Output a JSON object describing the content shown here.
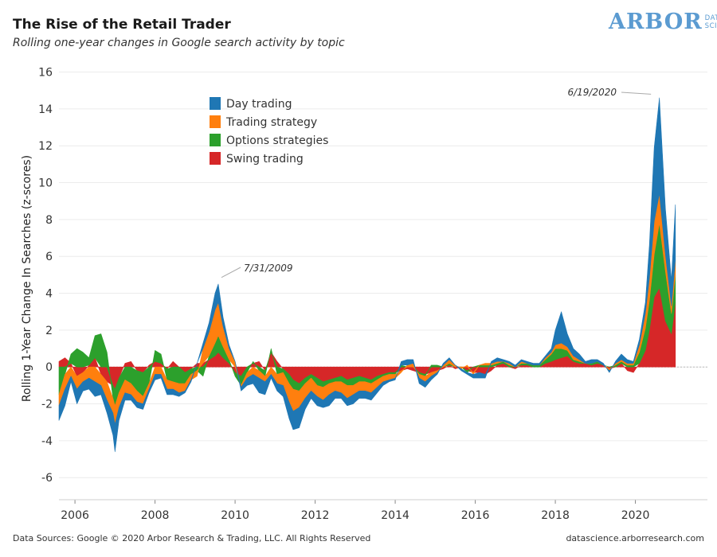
{
  "header": {
    "title": "The Rise of the Retail Trader",
    "subtitle": "Rolling one-year changes in Google search activity by topic"
  },
  "logo": {
    "main": "ARBOR",
    "sub_line1": "DATA",
    "sub_line2": "SCIENCE",
    "color": "#5b9bd1"
  },
  "footer": {
    "sources": "Data Sources: Google © 2020 Arbor Research & Trading, LLC. All Rights Reserved",
    "website": "datascience.arborresearch.com"
  },
  "chart_data": {
    "type": "area",
    "title": "The Rise of the Retail Trader",
    "subtitle": "Rolling one-year changes in Google search activity by topic",
    "xlabel": "",
    "ylabel": "Rolling 1-Year Change In Searches (z-scores)",
    "xlim": [
      2005.6,
      2021.8
    ],
    "ylim": [
      -7.2,
      16.8
    ],
    "x_ticks": [
      "2006",
      "2008",
      "2010",
      "2012",
      "2014",
      "2016",
      "2018",
      "2020"
    ],
    "y_ticks": [
      "16",
      "14",
      "12",
      "10",
      "8",
      "6",
      "4",
      "2",
      "0",
      "-2",
      "-4",
      "-6"
    ],
    "grid": true,
    "stacked": true,
    "legend_position": "top-left",
    "x": [
      2005.6,
      2005.75,
      2005.9,
      2006.05,
      2006.2,
      2006.35,
      2006.5,
      2006.65,
      2006.8,
      2006.95,
      2007.0,
      2007.1,
      2007.25,
      2007.4,
      2007.55,
      2007.7,
      2007.85,
      2008.0,
      2008.15,
      2008.3,
      2008.45,
      2008.6,
      2008.75,
      2008.9,
      2009.05,
      2009.2,
      2009.35,
      2009.5,
      2009.58,
      2009.7,
      2009.85,
      2010.0,
      2010.15,
      2010.3,
      2010.45,
      2010.6,
      2010.75,
      2010.9,
      2011.05,
      2011.2,
      2011.35,
      2011.45,
      2011.6,
      2011.75,
      2011.9,
      2012.05,
      2012.2,
      2012.35,
      2012.5,
      2012.65,
      2012.8,
      2012.95,
      2013.1,
      2013.25,
      2013.4,
      2013.55,
      2013.7,
      2013.85,
      2014.0,
      2014.15,
      2014.3,
      2014.45,
      2014.6,
      2014.75,
      2014.9,
      2015.05,
      2015.2,
      2015.35,
      2015.5,
      2015.65,
      2015.8,
      2015.95,
      2016.1,
      2016.25,
      2016.4,
      2016.55,
      2016.7,
      2016.85,
      2017.0,
      2017.15,
      2017.3,
      2017.45,
      2017.6,
      2017.75,
      2017.9,
      2018.0,
      2018.15,
      2018.3,
      2018.45,
      2018.6,
      2018.75,
      2018.9,
      2019.05,
      2019.2,
      2019.35,
      2019.5,
      2019.65,
      2019.8,
      2019.95,
      2020.1,
      2020.25,
      2020.35,
      2020.47,
      2020.6,
      2020.75,
      2020.9,
      2021.0
    ],
    "series": [
      {
        "name": "Swing trading",
        "color": "#d62728",
        "values": [
          0.3,
          0.5,
          0.2,
          -0.5,
          -0.3,
          0.1,
          0.5,
          -0.4,
          -0.8,
          -1.0,
          -1.2,
          -0.6,
          0.2,
          0.3,
          -0.2,
          -0.3,
          0.1,
          0.3,
          0.2,
          -0.1,
          0.3,
          0.0,
          -0.3,
          -0.1,
          0.2,
          0.2,
          0.4,
          0.6,
          0.8,
          0.5,
          0.2,
          -0.3,
          -0.5,
          0.0,
          0.2,
          0.3,
          -0.2,
          0.8,
          0.3,
          -0.1,
          -0.4,
          -0.7,
          -0.9,
          -0.6,
          -0.4,
          -0.6,
          -0.8,
          -0.7,
          -0.6,
          -0.5,
          -0.7,
          -0.6,
          -0.5,
          -0.6,
          -0.7,
          -0.5,
          -0.4,
          -0.3,
          -0.3,
          -0.2,
          -0.1,
          -0.2,
          -0.3,
          -0.4,
          -0.3,
          -0.2,
          -0.1,
          0.1,
          -0.1,
          0.0,
          -0.2,
          -0.3,
          -0.3,
          -0.4,
          -0.2,
          0.1,
          0.2,
          0.0,
          -0.1,
          0.1,
          0.1,
          0.0,
          0.0,
          0.2,
          0.3,
          0.4,
          0.5,
          0.6,
          0.3,
          0.2,
          0.2,
          0.1,
          0.2,
          0.1,
          -0.1,
          0.0,
          0.2,
          -0.2,
          -0.3,
          0.2,
          0.9,
          2.0,
          3.8,
          4.3,
          2.5,
          1.8,
          3.5
        ]
      },
      {
        "name": "Options strategies",
        "color": "#2ca02c",
        "values": [
          -1.5,
          -0.4,
          0.5,
          1.0,
          0.8,
          0.4,
          1.2,
          1.8,
          0.8,
          -0.7,
          -0.9,
          -0.8,
          -0.7,
          -0.9,
          -1.1,
          -1.3,
          -0.9,
          0.6,
          0.5,
          -0.6,
          -0.8,
          -0.9,
          -0.6,
          -0.3,
          -0.2,
          -0.5,
          0.2,
          0.7,
          0.9,
          0.6,
          0.2,
          -0.2,
          -0.5,
          -0.3,
          0.1,
          -0.2,
          -0.3,
          0.2,
          -0.4,
          -0.2,
          -0.5,
          -0.5,
          -0.4,
          -0.3,
          -0.2,
          -0.4,
          -0.3,
          -0.2,
          -0.2,
          -0.3,
          -0.3,
          -0.4,
          -0.3,
          -0.2,
          -0.2,
          -0.2,
          -0.1,
          -0.1,
          -0.1,
          0.1,
          0.0,
          0.0,
          -0.1,
          -0.1,
          0.1,
          0.1,
          0.0,
          0.1,
          0.0,
          0.0,
          -0.1,
          0.0,
          0.1,
          0.1,
          0.1,
          0.1,
          0.1,
          0.1,
          0.0,
          0.1,
          0.1,
          0.1,
          0.1,
          0.2,
          0.4,
          0.6,
          0.5,
          0.3,
          0.1,
          0.1,
          0.0,
          0.1,
          0.1,
          0.0,
          0.0,
          0.1,
          0.1,
          0.1,
          0.1,
          0.6,
          1.2,
          1.6,
          2.3,
          3.5,
          2.7,
          1.1,
          1.5
        ]
      },
      {
        "name": "Trading strategy",
        "color": "#ff7f0e",
        "values": [
          -0.6,
          -0.8,
          -0.5,
          -0.7,
          -0.5,
          -0.6,
          -0.8,
          -0.6,
          -1.0,
          -0.8,
          -1.0,
          -0.8,
          -0.7,
          -0.6,
          -0.6,
          -0.4,
          -0.3,
          -0.4,
          -0.4,
          -0.5,
          -0.4,
          -0.5,
          -0.4,
          -0.3,
          -0.3,
          0.8,
          1.3,
          1.8,
          1.8,
          1.1,
          0.6,
          0.3,
          -0.1,
          -0.3,
          -0.4,
          -0.4,
          -0.3,
          -0.4,
          -0.5,
          -0.7,
          -1.0,
          -1.2,
          -0.9,
          -0.8,
          -0.7,
          -0.6,
          -0.7,
          -0.6,
          -0.5,
          -0.6,
          -0.7,
          -0.5,
          -0.5,
          -0.5,
          -0.5,
          -0.4,
          -0.3,
          -0.3,
          -0.2,
          -0.1,
          0.1,
          0.2,
          -0.2,
          -0.3,
          -0.2,
          -0.1,
          0.1,
          0.2,
          0.1,
          -0.1,
          0.1,
          -0.1,
          0.0,
          0.1,
          0.1,
          0.1,
          0.0,
          0.1,
          0.0,
          0.1,
          0.0,
          0.0,
          0.0,
          0.1,
          0.1,
          0.2,
          0.3,
          0.2,
          0.2,
          0.1,
          0.0,
          0.0,
          0.0,
          0.0,
          -0.1,
          0.1,
          0.1,
          0.1,
          0.1,
          0.4,
          0.8,
          1.2,
          1.8,
          1.6,
          0.9,
          0.4,
          0.8
        ]
      },
      {
        "name": "Day trading",
        "color": "#1f77b4",
        "values": [
          -0.8,
          -0.9,
          -0.3,
          -0.8,
          -0.5,
          -0.6,
          -0.8,
          -0.5,
          -0.7,
          -1.2,
          -1.5,
          -0.7,
          -0.4,
          -0.3,
          -0.3,
          -0.3,
          -0.2,
          -0.3,
          -0.2,
          -0.3,
          -0.3,
          -0.2,
          -0.1,
          -0.1,
          0.0,
          0.3,
          0.5,
          0.9,
          1.0,
          0.5,
          0.2,
          0.0,
          -0.2,
          -0.4,
          -0.5,
          -0.8,
          -0.7,
          -0.2,
          -0.4,
          -0.6,
          -0.9,
          -1.0,
          -1.1,
          -0.6,
          -0.4,
          -0.5,
          -0.4,
          -0.6,
          -0.4,
          -0.3,
          -0.4,
          -0.5,
          -0.4,
          -0.4,
          -0.4,
          -0.3,
          -0.2,
          -0.1,
          -0.1,
          0.2,
          0.3,
          0.2,
          -0.3,
          -0.3,
          -0.2,
          -0.1,
          0.1,
          0.1,
          0.0,
          -0.1,
          -0.1,
          -0.2,
          -0.3,
          -0.2,
          0.1,
          0.2,
          0.1,
          0.1,
          0.1,
          0.1,
          0.1,
          0.1,
          0.1,
          0.1,
          0.2,
          0.8,
          1.7,
          0.7,
          0.4,
          0.3,
          0.1,
          0.2,
          0.1,
          0.1,
          -0.1,
          0.1,
          0.3,
          0.2,
          0.1,
          0.3,
          0.6,
          1.8,
          4.0,
          5.2,
          2.5,
          1.4,
          3.0
        ]
      }
    ],
    "annotations": [
      {
        "text": "7/31/2009",
        "x": 2009.58,
        "y": 4.6
      },
      {
        "text": "6/19/2020",
        "x": 2020.47,
        "y": 14.8
      }
    ]
  }
}
